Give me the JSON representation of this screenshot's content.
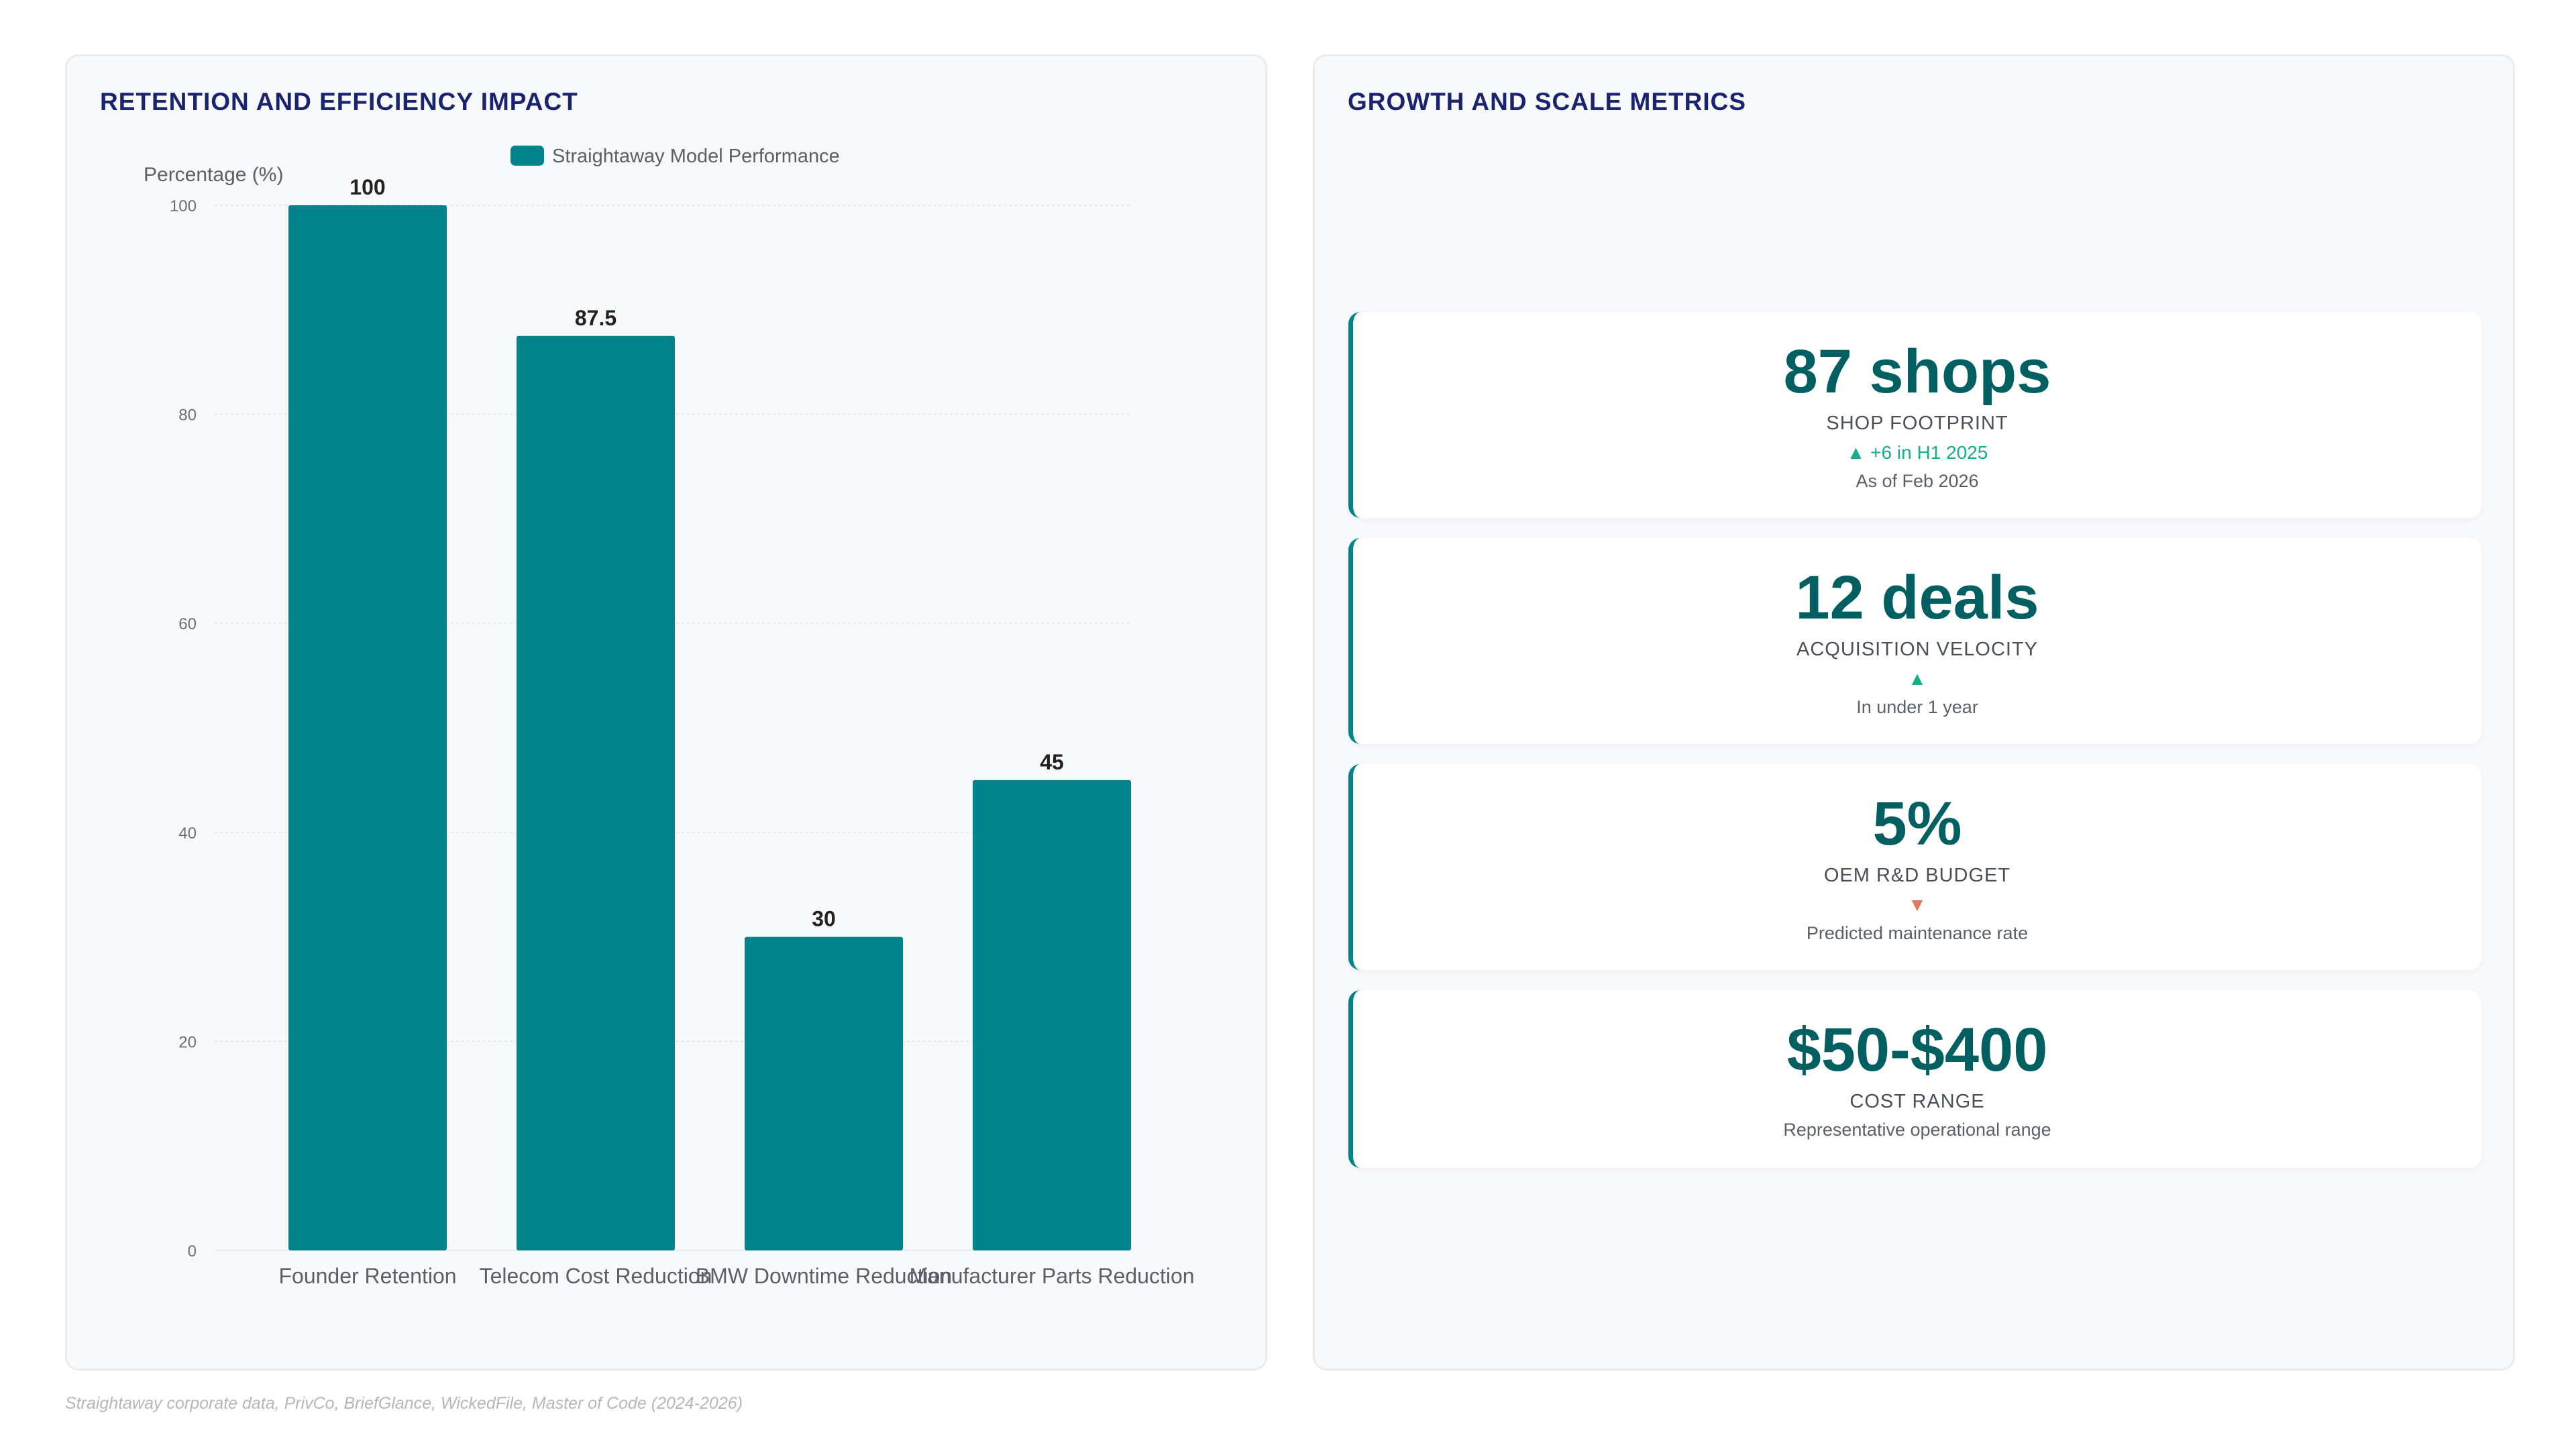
{
  "left_panel": {
    "title": "RETENTION AND EFFICIENCY IMPACT"
  },
  "right_panel": {
    "title": "GROWTH AND SCALE METRICS"
  },
  "chart_data": {
    "type": "bar",
    "categories": [
      "Founder Retention",
      "Telecom Cost Reduction",
      "BMW Downtime Reduction",
      "Manufacturer Parts Reduction"
    ],
    "series": [
      {
        "name": "Straightaway Model Performance",
        "values": [
          100,
          87.5,
          30,
          45
        ]
      }
    ],
    "title": "",
    "xlabel": "",
    "ylabel": "Percentage (%)",
    "ylim": [
      0,
      100
    ],
    "yticks": [
      0,
      20,
      40,
      60,
      80,
      100
    ],
    "data_labels": true,
    "grid": true,
    "legend": "top",
    "bar_color": "#00838a"
  },
  "metrics": [
    {
      "value": "87 shops",
      "label": "SHOP FOOTPRINT",
      "delta": "▲ +6 in H1 2025",
      "delta_dir": "up",
      "note": "As of Feb 2026"
    },
    {
      "value": "12 deals",
      "label": "ACQUISITION VELOCITY",
      "delta": "▲",
      "delta_dir": "up",
      "note": "In under 1 year"
    },
    {
      "value": "5%",
      "label": "OEM R&D BUDGET",
      "delta": "▼",
      "delta_dir": "down",
      "note": "Predicted maintenance rate"
    },
    {
      "value": "$50-$400",
      "label": "COST RANGE",
      "delta": "",
      "delta_dir": "none",
      "note": "Representative operational range"
    }
  ],
  "colors": {
    "up": "#12b08a",
    "down": "#e07a5f",
    "accent": "#00838a",
    "title": "#1a2370"
  },
  "footer": {
    "source": "Straightaway corporate data, PrivCo, BriefGlance, WickedFile, Master of Code (2024-2026)"
  }
}
